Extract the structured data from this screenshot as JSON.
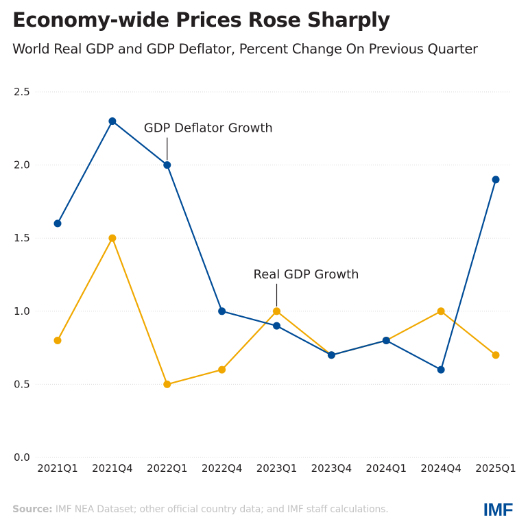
{
  "chart_data": {
    "type": "line",
    "title": "Economy-wide Prices Rose Sharply",
    "subtitle": "World Real GDP and GDP Deflator, Percent Change On Previous Quarter",
    "xlabel": "",
    "ylabel": "",
    "categories": [
      "2021Q1",
      "2021Q4",
      "2022Q1",
      "2022Q4",
      "2023Q1",
      "2023Q4",
      "2024Q1",
      "2024Q4",
      "2025Q1"
    ],
    "ylim": [
      0,
      2.5
    ],
    "yticks": [
      0.0,
      0.5,
      1.0,
      1.5,
      2.0,
      2.5
    ],
    "ytick_labels": [
      "0.0",
      "0.5",
      "1.0",
      "1.5",
      "2.0",
      "2.5"
    ],
    "grid": true,
    "legend": "none (inline annotations)",
    "series": [
      {
        "name": "GDP Deflator Growth",
        "color": "#004c97",
        "values": [
          1.6,
          2.3,
          2.0,
          1.0,
          0.9,
          0.7,
          0.8,
          0.6,
          1.9
        ],
        "annotation": {
          "text": "GDP Deflator Growth",
          "at_category": "2022Q1"
        }
      },
      {
        "name": "Real GDP Growth",
        "color": "#f0a800",
        "values": [
          0.8,
          1.5,
          0.5,
          0.6,
          1.0,
          0.7,
          0.8,
          1.0,
          0.7
        ],
        "annotation": {
          "text": "Real GDP Growth",
          "at_category": "2023Q1"
        }
      }
    ]
  },
  "header": {
    "title": "Economy-wide Prices Rose Sharply",
    "subtitle": "World Real GDP and GDP Deflator, Percent Change On Previous Quarter"
  },
  "footer": {
    "source_label": "Source:",
    "source_text": " IMF NEA Dataset; other official country data; and IMF staff calculations.",
    "logo": "IMF"
  },
  "colors": {
    "deflator": "#004c97",
    "real_gdp": "#f0a800",
    "text": "#231f20",
    "grid": "#d9d9d9",
    "logo": "#004c97"
  }
}
